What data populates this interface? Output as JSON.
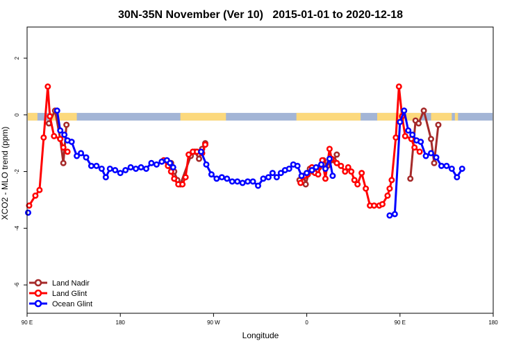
{
  "chart_data": {
    "type": "line",
    "title": "30N-35N November (Ver 10)   2015-01-01 to 2020-12-18",
    "xlabel": "Longitude",
    "ylabel": "XCO2 - MLO trend (ppm)",
    "xlim": [
      90,
      540
    ],
    "ylim": [
      -7,
      3.1
    ],
    "x_ticks": [
      {
        "value": 90,
        "label": "90 E"
      },
      {
        "value": 180,
        "label": "180"
      },
      {
        "value": 270,
        "label": "90 W"
      },
      {
        "value": 360,
        "label": "0"
      },
      {
        "value": 450,
        "label": "90 E"
      },
      {
        "value": 540,
        "label": "180"
      }
    ],
    "y_ticks": [
      {
        "value": 2,
        "label": "2"
      },
      {
        "value": 0,
        "label": "0"
      },
      {
        "value": -2,
        "label": "-2"
      },
      {
        "value": -4,
        "label": "-4"
      },
      {
        "value": -6,
        "label": "-6"
      }
    ],
    "grid": false,
    "legend_position": "bottom-left",
    "land_ocean_band": {
      "y_range": [
        -0.2,
        0.07
      ],
      "ocean_color": "#a3b5d6",
      "land_color": "#fcd97d",
      "land_segments": [
        [
          90,
          100
        ],
        [
          111,
          138
        ],
        [
          238,
          282
        ],
        [
          350,
          412
        ],
        [
          428,
          470
        ],
        [
          480,
          500
        ],
        [
          503,
          506
        ]
      ]
    },
    "series": [
      {
        "name": "Land Nadir",
        "color": "#a52a2a",
        "points": [
          [
            111,
            -0.3
          ],
          [
            117,
            0.15
          ],
          [
            122,
            -0.85
          ],
          [
            125,
            -1.7
          ],
          [
            128,
            -0.35
          ],
          [
            229,
            -1.7
          ],
          [
            232,
            -2.0
          ],
          [
            235,
            -2.3
          ],
          [
            238,
            -2.45
          ],
          [
            248,
            -1.45
          ],
          [
            252,
            -1.3
          ],
          [
            256,
            -1.55
          ],
          [
            259,
            -1.2
          ],
          [
            262,
            -1.0
          ],
          [
            353,
            -2.3
          ],
          [
            357,
            -2.15
          ],
          [
            359,
            -2.45
          ],
          [
            363,
            -1.9
          ],
          [
            366,
            -2.0
          ],
          [
            372,
            -1.85
          ],
          [
            376,
            -1.6
          ],
          [
            380,
            -1.8
          ],
          [
            386,
            -1.6
          ],
          [
            389,
            -1.4
          ],
          [
            460,
            -2.25
          ],
          [
            465,
            -0.2
          ],
          [
            468,
            -0.3
          ],
          [
            473,
            0.15
          ],
          [
            480,
            -0.85
          ],
          [
            483,
            -1.7
          ],
          [
            487,
            -0.35
          ]
        ]
      },
      {
        "name": "Land Glint",
        "color": "#ff0000",
        "points": [
          [
            92,
            -3.2
          ],
          [
            98,
            -2.85
          ],
          [
            102,
            -2.65
          ],
          [
            106,
            -0.8
          ],
          [
            110,
            1.0
          ],
          [
            112,
            -0.05
          ],
          [
            116,
            -0.75
          ],
          [
            122,
            -0.85
          ],
          [
            125,
            -1.15
          ],
          [
            129,
            -1.3
          ],
          [
            222,
            -1.6
          ],
          [
            226,
            -1.8
          ],
          [
            229,
            -2.0
          ],
          [
            232,
            -2.25
          ],
          [
            236,
            -2.45
          ],
          [
            240,
            -2.45
          ],
          [
            243,
            -2.2
          ],
          [
            246,
            -1.4
          ],
          [
            250,
            -1.3
          ],
          [
            254,
            -1.3
          ],
          [
            259,
            -1.35
          ],
          [
            262,
            -1.05
          ],
          [
            354,
            -2.4
          ],
          [
            358,
            -2.15
          ],
          [
            361,
            -2.1
          ],
          [
            365,
            -1.85
          ],
          [
            368,
            -2.05
          ],
          [
            371,
            -2.1
          ],
          [
            375,
            -1.6
          ],
          [
            378,
            -2.25
          ],
          [
            382,
            -1.2
          ],
          [
            384,
            -1.55
          ],
          [
            389,
            -1.7
          ],
          [
            393,
            -1.8
          ],
          [
            397,
            -2.0
          ],
          [
            400,
            -1.85
          ],
          [
            403,
            -2.0
          ],
          [
            406,
            -2.3
          ],
          [
            409,
            -2.45
          ],
          [
            413,
            -2.05
          ],
          [
            417,
            -2.6
          ],
          [
            421,
            -3.2
          ],
          [
            425,
            -3.2
          ],
          [
            430,
            -3.2
          ],
          [
            433,
            -3.15
          ],
          [
            438,
            -2.85
          ],
          [
            440,
            -2.6
          ],
          [
            442,
            -2.3
          ],
          [
            446,
            -0.8
          ],
          [
            449,
            1.0
          ],
          [
            452,
            -0.05
          ],
          [
            455,
            -0.75
          ],
          [
            461,
            -0.85
          ],
          [
            464,
            -1.15
          ],
          [
            469,
            -1.3
          ]
        ]
      },
      {
        "name": "Ocean Glint",
        "color": "#0000ff",
        "points": [
          [
            91,
            -3.45
          ],
          [
            119,
            0.15
          ],
          [
            122,
            -0.55
          ],
          [
            126,
            -0.7
          ],
          [
            129,
            -0.9
          ],
          [
            133,
            -0.95
          ],
          [
            138,
            -1.45
          ],
          [
            142,
            -1.35
          ],
          [
            147,
            -1.5
          ],
          [
            152,
            -1.8
          ],
          [
            157,
            -1.8
          ],
          [
            162,
            -1.9
          ],
          [
            166,
            -2.2
          ],
          [
            170,
            -1.9
          ],
          [
            175,
            -1.95
          ],
          [
            180,
            -2.05
          ],
          [
            185,
            -1.95
          ],
          [
            190,
            -1.85
          ],
          [
            195,
            -1.9
          ],
          [
            200,
            -1.85
          ],
          [
            205,
            -1.9
          ],
          [
            210,
            -1.7
          ],
          [
            215,
            -1.75
          ],
          [
            220,
            -1.65
          ],
          [
            225,
            -1.6
          ],
          [
            228,
            -1.7
          ],
          [
            231,
            -1.85
          ],
          [
            258,
            -1.3
          ],
          [
            263,
            -1.75
          ],
          [
            268,
            -2.1
          ],
          [
            273,
            -2.25
          ],
          [
            278,
            -2.2
          ],
          [
            283,
            -2.25
          ],
          [
            288,
            -2.35
          ],
          [
            293,
            -2.35
          ],
          [
            298,
            -2.4
          ],
          [
            303,
            -2.35
          ],
          [
            308,
            -2.35
          ],
          [
            313,
            -2.5
          ],
          [
            318,
            -2.25
          ],
          [
            323,
            -2.2
          ],
          [
            327,
            -2.05
          ],
          [
            331,
            -2.2
          ],
          [
            335,
            -2.05
          ],
          [
            339,
            -1.95
          ],
          [
            343,
            -1.9
          ],
          [
            347,
            -1.75
          ],
          [
            351,
            -1.8
          ],
          [
            355,
            -2.15
          ],
          [
            360,
            -2.05
          ],
          [
            365,
            -1.95
          ],
          [
            369,
            -1.85
          ],
          [
            374,
            -1.75
          ],
          [
            378,
            -1.9
          ],
          [
            382,
            -1.55
          ],
          [
            385,
            -2.15
          ],
          [
            440,
            -3.55
          ],
          [
            445,
            -3.5
          ],
          [
            450,
            -0.25
          ],
          [
            454,
            0.15
          ],
          [
            458,
            -0.55
          ],
          [
            462,
            -0.7
          ],
          [
            466,
            -0.9
          ],
          [
            470,
            -0.95
          ],
          [
            475,
            -1.45
          ],
          [
            480,
            -1.35
          ],
          [
            485,
            -1.5
          ],
          [
            490,
            -1.8
          ],
          [
            495,
            -1.8
          ],
          [
            500,
            -1.9
          ],
          [
            505,
            -2.2
          ],
          [
            510,
            -1.9
          ]
        ]
      }
    ]
  }
}
